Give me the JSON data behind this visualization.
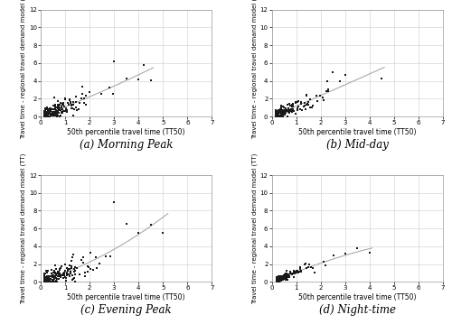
{
  "subplots": [
    {
      "label": "(a) Morning Peak",
      "xlabel": "50th percentile travel time (TT50)",
      "ylabel": "Travel time - regional travel demand model (TT)",
      "xlim": [
        0,
        7
      ],
      "ylim": [
        0,
        12
      ],
      "xticks": [
        0,
        1,
        2,
        3,
        4,
        5,
        6,
        7
      ],
      "yticks": [
        0,
        2,
        4,
        6,
        8,
        10,
        12
      ]
    },
    {
      "label": "(b) Mid-day",
      "xlabel": "50th percentile travel time (TT50)",
      "ylabel": "Travel time - regional travel demand model (TT)",
      "xlim": [
        0,
        7
      ],
      "ylim": [
        0,
        12
      ],
      "xticks": [
        0,
        1,
        2,
        3,
        4,
        5,
        6,
        7
      ],
      "yticks": [
        0,
        2,
        4,
        6,
        8,
        10,
        12
      ]
    },
    {
      "label": "(c) Evening Peak",
      "xlabel": "50th percentile travel time (TT50)",
      "ylabel": "Travel time - regional travel demand model (TT)",
      "xlim": [
        0,
        7
      ],
      "ylim": [
        0,
        12
      ],
      "xticks": [
        0,
        1,
        2,
        3,
        4,
        5,
        6,
        7
      ],
      "yticks": [
        0,
        2,
        4,
        6,
        8,
        10,
        12
      ]
    },
    {
      "label": "(d) Night-time",
      "xlabel": "50th percentile travel time (TT50)",
      "ylabel": "Travel time - regional travel demand model (TT)",
      "xlim": [
        0,
        7
      ],
      "ylim": [
        0,
        12
      ],
      "xticks": [
        0,
        1,
        2,
        3,
        4,
        5,
        6,
        7
      ],
      "yticks": [
        0,
        2,
        4,
        6,
        8,
        10,
        12
      ]
    }
  ],
  "dot_color": "#1a1a1a",
  "dot_size": 3.5,
  "background_color": "#ffffff",
  "grid_color": "#cccccc",
  "line_color": "#aaaaaa",
  "xlabel_fontsize": 5.5,
  "ylabel_fontsize": 5.0,
  "tick_fontsize": 5.0,
  "caption_fontsize": 8.5
}
